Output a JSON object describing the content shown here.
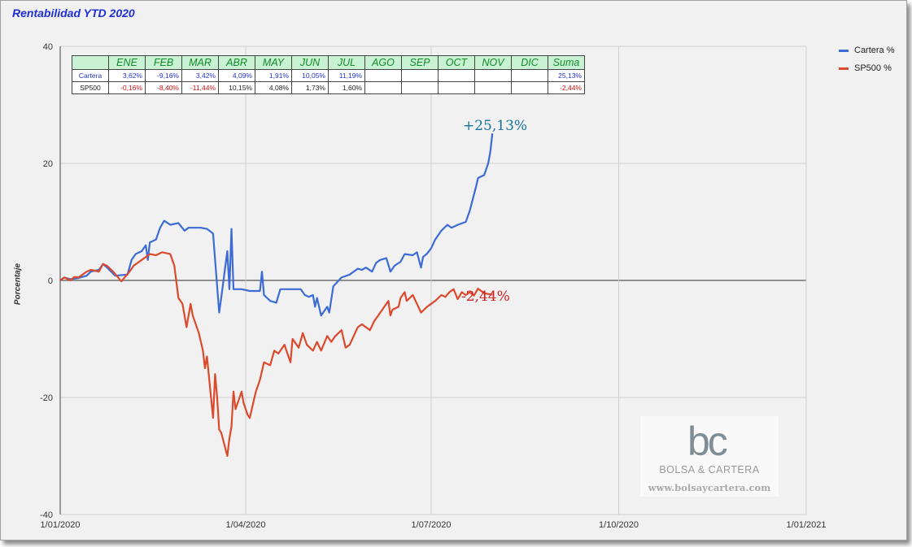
{
  "chart_data": {
    "type": "line",
    "title": "Rentabilidad YTD 2020",
    "ylabel": "Porcentaje",
    "xlabel": "",
    "ylim": [
      -40,
      40
    ],
    "xlim": [
      "2020-01-01",
      "2021-01-01"
    ],
    "y_ticks": [
      "40",
      "20",
      "0",
      "-20",
      "-40"
    ],
    "x_ticks": [
      {
        "date": "2020-01-01",
        "label": "1/01/2020"
      },
      {
        "date": "2020-04-01",
        "label": "1/04/2020"
      },
      {
        "date": "2020-07-01",
        "label": "1/07/2020"
      },
      {
        "date": "2020-10-01",
        "label": "1/10/2020"
      },
      {
        "date": "2021-01-01",
        "label": "1/01/2021"
      }
    ],
    "grid": true,
    "legend_position": "right",
    "series": [
      {
        "name": "Cartera %",
        "color": "#3c6bd6",
        "points": [
          [
            "2020-01-01",
            0
          ],
          [
            "2020-01-03",
            0.5
          ],
          [
            "2020-01-06",
            0.2
          ],
          [
            "2020-01-08",
            0.3
          ],
          [
            "2020-01-10",
            0.4
          ],
          [
            "2020-01-14",
            0.8
          ],
          [
            "2020-01-16",
            1.5
          ],
          [
            "2020-01-20",
            1.8
          ],
          [
            "2020-01-22",
            2.8
          ],
          [
            "2020-01-24",
            2.2
          ],
          [
            "2020-01-28",
            0.8
          ],
          [
            "2020-02-03",
            1.0
          ],
          [
            "2020-02-05",
            3.5
          ],
          [
            "2020-02-07",
            4.5
          ],
          [
            "2020-02-10",
            5.0
          ],
          [
            "2020-02-12",
            6.0
          ],
          [
            "2020-02-13",
            3.5
          ],
          [
            "2020-02-14",
            6.5
          ],
          [
            "2020-02-17",
            7.0
          ],
          [
            "2020-02-19",
            9.0
          ],
          [
            "2020-02-21",
            10.2
          ],
          [
            "2020-02-24",
            9.5
          ],
          [
            "2020-02-28",
            9.8
          ],
          [
            "2020-03-02",
            8.5
          ],
          [
            "2020-03-04",
            9.0
          ],
          [
            "2020-03-10",
            9.0
          ],
          [
            "2020-03-13",
            8.8
          ],
          [
            "2020-03-16",
            8.0
          ],
          [
            "2020-03-18",
            -1.0
          ],
          [
            "2020-03-19",
            -5.5
          ],
          [
            "2020-03-20",
            -3.0
          ],
          [
            "2020-03-23",
            5.0
          ],
          [
            "2020-03-24",
            -1.5
          ],
          [
            "2020-03-25",
            8.8
          ],
          [
            "2020-03-26",
            -1.5
          ],
          [
            "2020-03-30",
            -1.5
          ],
          [
            "2020-04-03",
            -1.8
          ],
          [
            "2020-04-08",
            -1.8
          ],
          [
            "2020-04-09",
            1.5
          ],
          [
            "2020-04-10",
            -2.5
          ],
          [
            "2020-04-13",
            -3.5
          ],
          [
            "2020-04-16",
            -3.8
          ],
          [
            "2020-04-18",
            -1.5
          ],
          [
            "2020-04-22",
            -1.5
          ],
          [
            "2020-04-28",
            -1.5
          ],
          [
            "2020-04-30",
            -2.5
          ],
          [
            "2020-05-02",
            -2.8
          ],
          [
            "2020-05-04",
            -2.5
          ],
          [
            "2020-05-05",
            -4.5
          ],
          [
            "2020-05-06",
            -3.0
          ],
          [
            "2020-05-08",
            -6.0
          ],
          [
            "2020-05-11",
            -4.5
          ],
          [
            "2020-05-12",
            -5.5
          ],
          [
            "2020-05-14",
            -1.0
          ],
          [
            "2020-05-18",
            0.5
          ],
          [
            "2020-05-22",
            1.0
          ],
          [
            "2020-05-26",
            2.0
          ],
          [
            "2020-05-28",
            1.8
          ],
          [
            "2020-05-30",
            2.2
          ],
          [
            "2020-06-02",
            1.5
          ],
          [
            "2020-06-04",
            3.0
          ],
          [
            "2020-06-06",
            3.5
          ],
          [
            "2020-06-09",
            3.8
          ],
          [
            "2020-06-11",
            1.5
          ],
          [
            "2020-06-13",
            2.5
          ],
          [
            "2020-06-16",
            3.2
          ],
          [
            "2020-06-18",
            4.5
          ],
          [
            "2020-06-22",
            4.3
          ],
          [
            "2020-06-24",
            4.8
          ],
          [
            "2020-06-26",
            2.2
          ],
          [
            "2020-06-27",
            4.0
          ],
          [
            "2020-06-29",
            4.6
          ],
          [
            "2020-07-01",
            5.5
          ],
          [
            "2020-07-03",
            7.0
          ],
          [
            "2020-07-06",
            8.5
          ],
          [
            "2020-07-09",
            9.5
          ],
          [
            "2020-07-11",
            9.0
          ],
          [
            "2020-07-14",
            9.5
          ],
          [
            "2020-07-18",
            10.0
          ],
          [
            "2020-07-20",
            12.0
          ],
          [
            "2020-07-23",
            16.0
          ],
          [
            "2020-07-24",
            17.5
          ],
          [
            "2020-07-27",
            18.0
          ],
          [
            "2020-07-29",
            20.0
          ],
          [
            "2020-07-30",
            22.0
          ],
          [
            "2020-07-31",
            25.13
          ]
        ]
      },
      {
        "name": "SP500 %",
        "color": "#db4a2c",
        "points": [
          [
            "2020-01-01",
            0
          ],
          [
            "2020-01-03",
            0.5
          ],
          [
            "2020-01-06",
            0.0
          ],
          [
            "2020-01-08",
            0.6
          ],
          [
            "2020-01-10",
            0.5
          ],
          [
            "2020-01-14",
            1.5
          ],
          [
            "2020-01-16",
            1.8
          ],
          [
            "2020-01-20",
            1.5
          ],
          [
            "2020-01-22",
            2.8
          ],
          [
            "2020-01-24",
            2.5
          ],
          [
            "2020-01-27",
            1.5
          ],
          [
            "2020-01-31",
            -0.16
          ],
          [
            "2020-02-04",
            1.5
          ],
          [
            "2020-02-06",
            2.5
          ],
          [
            "2020-02-10",
            3.5
          ],
          [
            "2020-02-14",
            4.5
          ],
          [
            "2020-02-17",
            4.3
          ],
          [
            "2020-02-20",
            4.8
          ],
          [
            "2020-02-24",
            4.5
          ],
          [
            "2020-02-26",
            2.5
          ],
          [
            "2020-02-28",
            -3.0
          ],
          [
            "2020-03-01",
            -4.0
          ],
          [
            "2020-03-03",
            -8.0
          ],
          [
            "2020-03-05",
            -4.0
          ],
          [
            "2020-03-06",
            -6.0
          ],
          [
            "2020-03-09",
            -9.0
          ],
          [
            "2020-03-11",
            -12.0
          ],
          [
            "2020-03-12",
            -15.0
          ],
          [
            "2020-03-13",
            -13.0
          ],
          [
            "2020-03-16",
            -23.5
          ],
          [
            "2020-03-17",
            -16.0
          ],
          [
            "2020-03-18",
            -20.0
          ],
          [
            "2020-03-19",
            -25.5
          ],
          [
            "2020-03-20",
            -26.0
          ],
          [
            "2020-03-23",
            -30.0
          ],
          [
            "2020-03-24",
            -27.0
          ],
          [
            "2020-03-25",
            -25.0
          ],
          [
            "2020-03-26",
            -19.0
          ],
          [
            "2020-03-27",
            -22.0
          ],
          [
            "2020-03-30",
            -19.0
          ],
          [
            "2020-03-31",
            -21.0
          ],
          [
            "2020-04-02",
            -23.0
          ],
          [
            "2020-04-03",
            -23.5
          ],
          [
            "2020-04-06",
            -19.0
          ],
          [
            "2020-04-08",
            -17.0
          ],
          [
            "2020-04-10",
            -14.0
          ],
          [
            "2020-04-13",
            -14.5
          ],
          [
            "2020-04-15",
            -12.0
          ],
          [
            "2020-04-17",
            -12.5
          ],
          [
            "2020-04-20",
            -11.0
          ],
          [
            "2020-04-23",
            -14.0
          ],
          [
            "2020-04-24",
            -10.0
          ],
          [
            "2020-04-27",
            -11.5
          ],
          [
            "2020-04-29",
            -9.0
          ],
          [
            "2020-05-01",
            -11.0
          ],
          [
            "2020-05-04",
            -12.0
          ],
          [
            "2020-05-06",
            -10.5
          ],
          [
            "2020-05-08",
            -12.0
          ],
          [
            "2020-05-11",
            -9.5
          ],
          [
            "2020-05-13",
            -10.5
          ],
          [
            "2020-05-15",
            -9.5
          ],
          [
            "2020-05-18",
            -8.5
          ],
          [
            "2020-05-20",
            -11.5
          ],
          [
            "2020-05-22",
            -11.0
          ],
          [
            "2020-05-26",
            -8.0
          ],
          [
            "2020-05-28",
            -7.5
          ],
          [
            "2020-06-01",
            -8.5
          ],
          [
            "2020-06-03",
            -7.0
          ],
          [
            "2020-06-05",
            -6.0
          ],
          [
            "2020-06-08",
            -4.5
          ],
          [
            "2020-06-10",
            -3.5
          ],
          [
            "2020-06-11",
            -6.0
          ],
          [
            "2020-06-12",
            -5.0
          ],
          [
            "2020-06-15",
            -4.5
          ],
          [
            "2020-06-16",
            -3.0
          ],
          [
            "2020-06-18",
            -2.0
          ],
          [
            "2020-06-19",
            -3.5
          ],
          [
            "2020-06-22",
            -2.5
          ],
          [
            "2020-06-24",
            -4.0
          ],
          [
            "2020-06-26",
            -5.5
          ],
          [
            "2020-06-29",
            -4.5
          ],
          [
            "2020-07-01",
            -4.0
          ],
          [
            "2020-07-03",
            -3.5
          ],
          [
            "2020-07-06",
            -2.5
          ],
          [
            "2020-07-08",
            -2.8
          ],
          [
            "2020-07-10",
            -2.0
          ],
          [
            "2020-07-12",
            -1.5
          ],
          [
            "2020-07-14",
            -3.2
          ],
          [
            "2020-07-16",
            -2.0
          ],
          [
            "2020-07-18",
            -2.5
          ],
          [
            "2020-07-20",
            -2.0
          ],
          [
            "2020-07-22",
            -2.6
          ],
          [
            "2020-07-24",
            -1.4
          ],
          [
            "2020-07-27",
            -2.2
          ],
          [
            "2020-07-31",
            -2.44
          ]
        ]
      }
    ],
    "annotations": [
      {
        "text": "+25,13%",
        "series": "Cartera %"
      },
      {
        "text": "-2,44%",
        "series": "SP500 %"
      }
    ]
  },
  "monthly_table": {
    "headers": [
      "",
      "ENE",
      "FEB",
      "MAR",
      "ABR",
      "MAY",
      "JUN",
      "JUL",
      "AGO",
      "SEP",
      "OCT",
      "NOV",
      "DIC",
      "Suma"
    ],
    "rows": [
      {
        "label": "Cartera",
        "cells": [
          "3,62%",
          "-9,16%",
          "3,42%",
          "4,09%",
          "1,91%",
          "10,05%",
          "11,19%",
          "",
          "",
          "",
          "",
          "",
          "25,13%"
        ]
      },
      {
        "label": "SP500",
        "cells": [
          "-0,16%",
          "-8,40%",
          "-11,44%",
          "10,15%",
          "4,08%",
          "1,73%",
          "1,60%",
          "",
          "",
          "",
          "",
          "",
          "-2,44%"
        ]
      }
    ]
  },
  "watermark": {
    "logo_text": "bc",
    "name": "BOLSA & CARTERA",
    "url": "www.bolsaycartera.com"
  }
}
